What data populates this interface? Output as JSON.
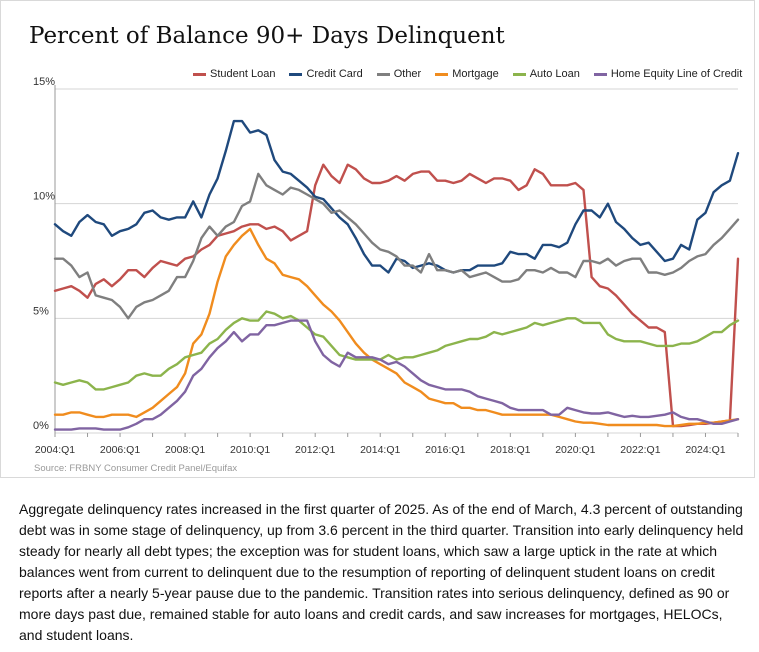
{
  "caption": "Aggregate delinquency rates increased in the first quarter of 2025. As of the end of March, 4.3 percent of outstanding debt was in some stage of delinquency, up from 3.6 percent in the third quarter. Transition into early delinquency held steady for nearly all debt types; the exception was for student loans, which saw a large uptick in the rate at which balances went from current to delinquent due to the resumption of reporting of delinquent student loans on credit reports after a nearly 5-year pause due to the pandemic. Transition rates into serious delinquency, defined as 90 or more days past due, remained stable for auto loans and credit cards, and saw increases for mortgages, HELOCs, and student loans.",
  "chart_data": {
    "type": "line",
    "title": "Percent of Balance 90+ Days Delinquent",
    "source": "Source: FRBNY Consumer Credit Panel/Equifax",
    "xlabel": "",
    "ylabel": "",
    "x_start": "2004:Q1",
    "x_end": "2025:Q1",
    "x_ticks": [
      "2004:Q1",
      "2006:Q1",
      "2008:Q1",
      "2010:Q1",
      "2012:Q1",
      "2014:Q1",
      "2016:Q1",
      "2018:Q1",
      "2020:Q1",
      "2022:Q1",
      "2024:Q1"
    ],
    "y_ticks": [
      "0%",
      "5%",
      "10%",
      "15%"
    ],
    "ylim": [
      0,
      15
    ],
    "grid": true,
    "legend_position": "top",
    "series": [
      {
        "name": "Student Loan",
        "color": "#c0504d",
        "values": [
          6.2,
          6.3,
          6.4,
          6.2,
          5.9,
          6.5,
          6.7,
          6.4,
          6.7,
          7.1,
          7.1,
          6.8,
          7.2,
          7.5,
          7.4,
          7.3,
          7.6,
          7.7,
          8.0,
          8.2,
          8.6,
          8.7,
          8.8,
          9.0,
          9.1,
          9.1,
          8.9,
          9.0,
          8.8,
          8.4,
          8.6,
          8.8,
          10.8,
          11.7,
          11.2,
          10.9,
          11.7,
          11.5,
          11.1,
          10.9,
          10.9,
          11.0,
          11.2,
          11.0,
          11.3,
          11.4,
          11.4,
          11.0,
          11.0,
          10.9,
          11.0,
          11.3,
          11.1,
          10.9,
          11.1,
          11.1,
          11.0,
          10.6,
          10.8,
          11.5,
          11.3,
          10.8,
          10.8,
          10.8,
          10.9,
          10.6,
          6.8,
          6.4,
          6.3,
          6.0,
          5.6,
          5.2,
          4.9,
          4.6,
          4.6,
          4.4,
          0.3,
          0.3,
          0.35,
          0.4,
          0.4,
          0.45,
          0.5,
          0.55,
          7.6
        ]
      },
      {
        "name": "Credit Card",
        "color": "#1f497d",
        "values": [
          9.1,
          8.8,
          8.6,
          9.2,
          9.5,
          9.2,
          9.1,
          8.6,
          8.8,
          8.9,
          9.1,
          9.6,
          9.7,
          9.4,
          9.3,
          9.4,
          9.4,
          10.1,
          9.4,
          10.4,
          11.1,
          12.3,
          13.6,
          13.6,
          13.1,
          13.2,
          13.0,
          11.9,
          11.4,
          11.3,
          11.0,
          10.7,
          10.3,
          10.2,
          9.8,
          9.4,
          9.1,
          8.5,
          7.8,
          7.3,
          7.3,
          7.0,
          7.6,
          7.5,
          7.2,
          7.3,
          7.4,
          7.3,
          7.1,
          7.0,
          7.1,
          7.1,
          7.3,
          7.3,
          7.3,
          7.4,
          7.9,
          7.8,
          7.8,
          7.6,
          8.2,
          8.2,
          8.1,
          8.3,
          9.1,
          9.7,
          9.7,
          9.4,
          10.0,
          9.2,
          8.9,
          8.5,
          8.2,
          8.3,
          7.9,
          7.5,
          7.6,
          8.2,
          8.0,
          9.3,
          9.6,
          10.5,
          10.8,
          11.0,
          12.2
        ]
      },
      {
        "name": "Other",
        "color": "#7f7f7f",
        "values": [
          7.6,
          7.6,
          7.3,
          6.8,
          7.0,
          6.0,
          5.9,
          5.8,
          5.5,
          5.0,
          5.5,
          5.7,
          5.8,
          6.0,
          6.2,
          6.8,
          6.8,
          7.5,
          8.5,
          9.0,
          8.6,
          9.0,
          9.2,
          9.9,
          10.1,
          11.3,
          10.8,
          10.6,
          10.4,
          10.7,
          10.6,
          10.4,
          10.2,
          10.0,
          9.6,
          9.7,
          9.4,
          9.1,
          8.7,
          8.3,
          8.0,
          7.9,
          7.7,
          7.3,
          7.3,
          7.0,
          7.8,
          7.1,
          7.1,
          7.0,
          7.1,
          6.8,
          6.9,
          7.0,
          6.8,
          6.6,
          6.6,
          6.7,
          7.1,
          7.1,
          7.0,
          7.2,
          7.0,
          7.0,
          6.8,
          7.5,
          7.5,
          7.4,
          7.6,
          7.3,
          7.5,
          7.6,
          7.6,
          7.0,
          7.0,
          6.9,
          7.0,
          7.2,
          7.5,
          7.7,
          7.8,
          8.2,
          8.5,
          8.9,
          9.3
        ]
      },
      {
        "name": "Mortgage",
        "color": "#f08c1e",
        "values": [
          0.8,
          0.8,
          0.9,
          0.9,
          0.8,
          0.7,
          0.7,
          0.8,
          0.8,
          0.8,
          0.7,
          0.9,
          1.1,
          1.4,
          1.7,
          2.0,
          2.6,
          3.9,
          4.3,
          5.2,
          6.6,
          7.7,
          8.2,
          8.6,
          8.9,
          8.2,
          7.6,
          7.4,
          6.9,
          6.8,
          6.7,
          6.4,
          6.0,
          5.6,
          5.3,
          4.9,
          4.4,
          3.9,
          3.5,
          3.2,
          3.0,
          2.8,
          2.6,
          2.2,
          2.0,
          1.8,
          1.5,
          1.4,
          1.3,
          1.3,
          1.1,
          1.1,
          1.0,
          1.0,
          0.9,
          0.8,
          0.8,
          0.8,
          0.8,
          0.8,
          0.8,
          0.8,
          0.7,
          0.6,
          0.5,
          0.45,
          0.45,
          0.4,
          0.35,
          0.35,
          0.35,
          0.35,
          0.35,
          0.35,
          0.35,
          0.3,
          0.3,
          0.35,
          0.4,
          0.4,
          0.45,
          0.45,
          0.5,
          0.55,
          0.6
        ]
      },
      {
        "name": "Auto Loan",
        "color": "#8cb44c",
        "values": [
          2.2,
          2.1,
          2.2,
          2.3,
          2.2,
          1.9,
          1.9,
          2.0,
          2.1,
          2.2,
          2.5,
          2.6,
          2.5,
          2.5,
          2.8,
          3.0,
          3.3,
          3.4,
          3.5,
          3.9,
          4.1,
          4.5,
          4.8,
          5.0,
          4.9,
          4.9,
          5.3,
          5.2,
          5.0,
          5.1,
          4.9,
          4.6,
          4.3,
          4.2,
          3.8,
          3.4,
          3.3,
          3.2,
          3.2,
          3.2,
          3.2,
          3.4,
          3.2,
          3.3,
          3.3,
          3.4,
          3.5,
          3.6,
          3.8,
          3.9,
          4.0,
          4.1,
          4.1,
          4.2,
          4.4,
          4.3,
          4.4,
          4.5,
          4.6,
          4.8,
          4.7,
          4.8,
          4.9,
          5.0,
          5.0,
          4.8,
          4.8,
          4.8,
          4.3,
          4.1,
          4.0,
          4.0,
          4.0,
          3.9,
          3.8,
          3.8,
          3.8,
          3.9,
          3.9,
          4.0,
          4.2,
          4.4,
          4.4,
          4.7,
          4.9
        ]
      },
      {
        "name": "Home Equity Line of Credit",
        "color": "#8064a2",
        "values": [
          0.15,
          0.15,
          0.15,
          0.2,
          0.2,
          0.2,
          0.15,
          0.15,
          0.15,
          0.25,
          0.4,
          0.6,
          0.6,
          0.8,
          1.1,
          1.4,
          1.8,
          2.5,
          2.8,
          3.3,
          3.7,
          4.0,
          4.4,
          4.0,
          4.3,
          4.3,
          4.7,
          4.7,
          4.8,
          4.9,
          4.9,
          4.9,
          4.0,
          3.4,
          3.1,
          2.9,
          3.5,
          3.3,
          3.3,
          3.3,
          3.2,
          3.0,
          3.1,
          2.9,
          2.6,
          2.3,
          2.1,
          2.0,
          1.9,
          1.9,
          1.9,
          1.8,
          1.6,
          1.5,
          1.4,
          1.3,
          1.1,
          1.0,
          1.0,
          1.0,
          1.0,
          0.8,
          0.8,
          1.1,
          1.0,
          0.9,
          0.85,
          0.85,
          0.9,
          0.8,
          0.7,
          0.75,
          0.7,
          0.7,
          0.75,
          0.8,
          0.9,
          0.7,
          0.6,
          0.6,
          0.5,
          0.4,
          0.4,
          0.5,
          0.6
        ]
      }
    ]
  }
}
